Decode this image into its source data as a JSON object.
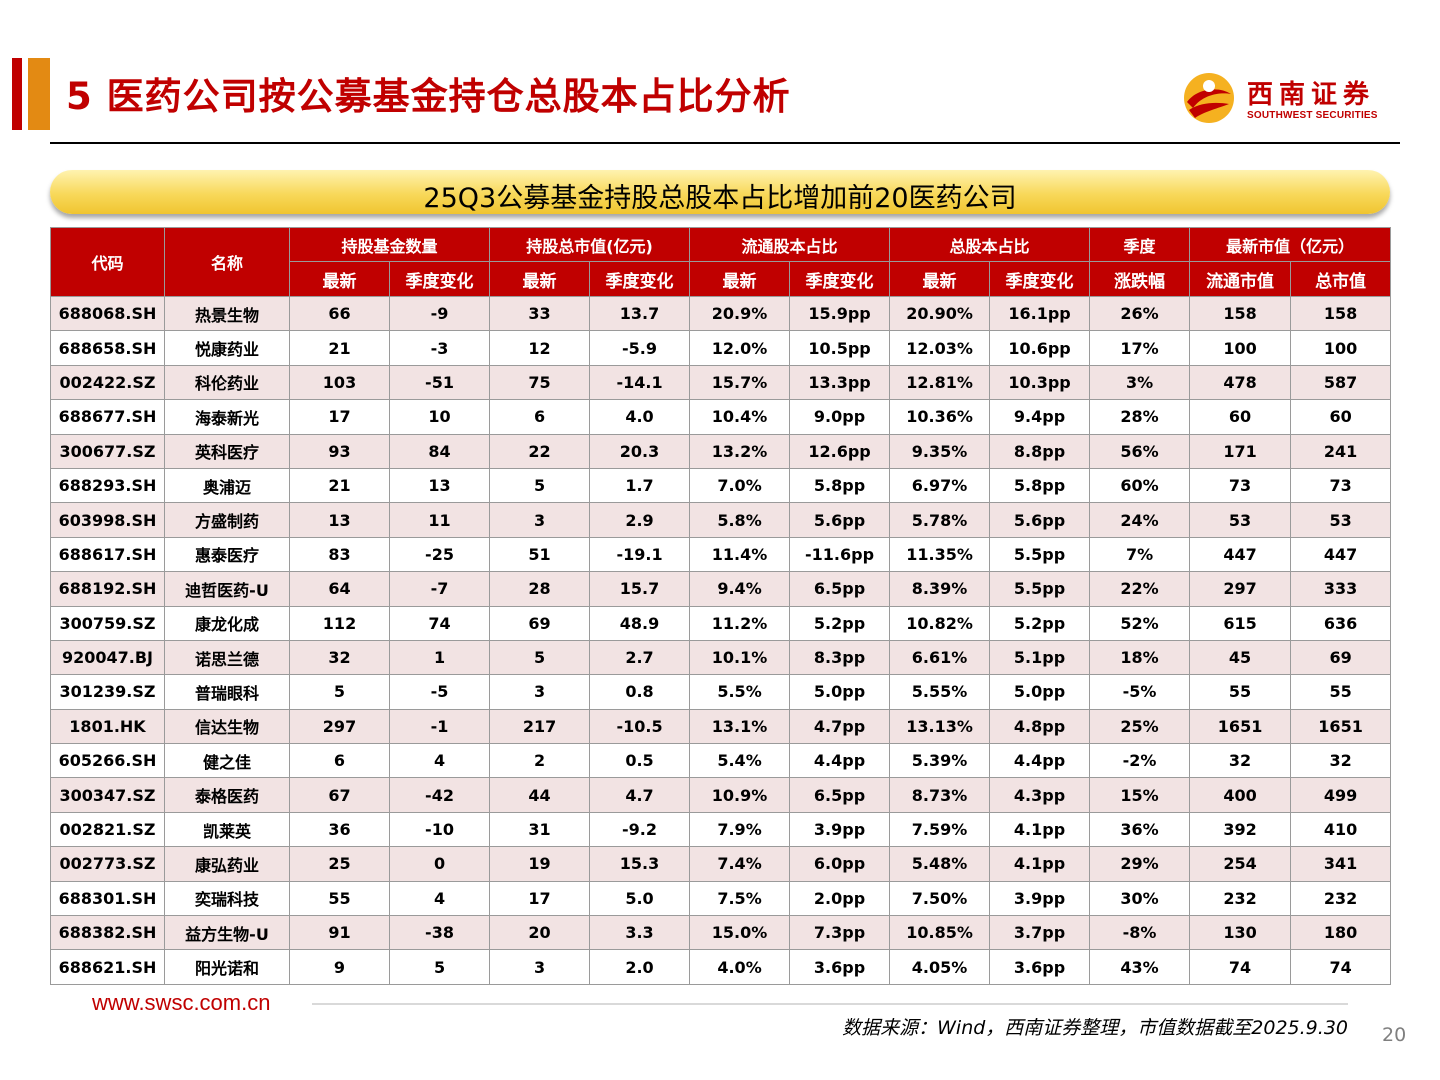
{
  "page": {
    "title": "5 医药公司按公募基金持仓总股本占比分析",
    "logo_cn": "西南证券",
    "logo_en": "SOUTHWEST SECURITIES",
    "banner": "25Q3公募基金持股总股本占比增加前20医药公司",
    "footer_url": "www.swsc.com.cn",
    "source": "数据来源：Wind，西南证券整理，市值数据截至2025.9.30",
    "page_number": "20"
  },
  "colors": {
    "brand_red": "#c00000",
    "accent_orange": "#e38a13",
    "banner_yellow": "#f8d85a",
    "row_tint": "#f2e3e3"
  },
  "table": {
    "group_headers": [
      "代码",
      "名称",
      "持股基金数量",
      "持股总市值(亿元)",
      "流通股本占比",
      "总股本占比",
      "季度",
      "最新市值（亿元）"
    ],
    "sub_headers": [
      "最新",
      "季度变化",
      "最新",
      "季度变化",
      "最新",
      "季度变化",
      "最新",
      "季度变化",
      "涨跌幅",
      "流通市值",
      "总市值"
    ],
    "rows": [
      [
        "688068.SH",
        "热景生物",
        "66",
        "-9",
        "33",
        "13.7",
        "20.9%",
        "15.9pp",
        "20.90%",
        "16.1pp",
        "26%",
        "158",
        "158"
      ],
      [
        "688658.SH",
        "悦康药业",
        "21",
        "-3",
        "12",
        "-5.9",
        "12.0%",
        "10.5pp",
        "12.03%",
        "10.6pp",
        "17%",
        "100",
        "100"
      ],
      [
        "002422.SZ",
        "科伦药业",
        "103",
        "-51",
        "75",
        "-14.1",
        "15.7%",
        "13.3pp",
        "12.81%",
        "10.3pp",
        "3%",
        "478",
        "587"
      ],
      [
        "688677.SH",
        "海泰新光",
        "17",
        "10",
        "6",
        "4.0",
        "10.4%",
        "9.0pp",
        "10.36%",
        "9.4pp",
        "28%",
        "60",
        "60"
      ],
      [
        "300677.SZ",
        "英科医疗",
        "93",
        "84",
        "22",
        "20.3",
        "13.2%",
        "12.6pp",
        "9.35%",
        "8.8pp",
        "56%",
        "171",
        "241"
      ],
      [
        "688293.SH",
        "奥浦迈",
        "21",
        "13",
        "5",
        "1.7",
        "7.0%",
        "5.8pp",
        "6.97%",
        "5.8pp",
        "60%",
        "73",
        "73"
      ],
      [
        "603998.SH",
        "方盛制药",
        "13",
        "11",
        "3",
        "2.9",
        "5.8%",
        "5.6pp",
        "5.78%",
        "5.6pp",
        "24%",
        "53",
        "53"
      ],
      [
        "688617.SH",
        "惠泰医疗",
        "83",
        "-25",
        "51",
        "-19.1",
        "11.4%",
        "-11.6pp",
        "11.35%",
        "5.5pp",
        "7%",
        "447",
        "447"
      ],
      [
        "688192.SH",
        "迪哲医药-U",
        "64",
        "-7",
        "28",
        "15.7",
        "9.4%",
        "6.5pp",
        "8.39%",
        "5.5pp",
        "22%",
        "297",
        "333"
      ],
      [
        "300759.SZ",
        "康龙化成",
        "112",
        "74",
        "69",
        "48.9",
        "11.2%",
        "5.2pp",
        "10.82%",
        "5.2pp",
        "52%",
        "615",
        "636"
      ],
      [
        "920047.BJ",
        "诺思兰德",
        "32",
        "1",
        "5",
        "2.7",
        "10.1%",
        "8.3pp",
        "6.61%",
        "5.1pp",
        "18%",
        "45",
        "69"
      ],
      [
        "301239.SZ",
        "普瑞眼科",
        "5",
        "-5",
        "3",
        "0.8",
        "5.5%",
        "5.0pp",
        "5.55%",
        "5.0pp",
        "-5%",
        "55",
        "55"
      ],
      [
        "1801.HK",
        "信达生物",
        "297",
        "-1",
        "217",
        "-10.5",
        "13.1%",
        "4.7pp",
        "13.13%",
        "4.8pp",
        "25%",
        "1651",
        "1651"
      ],
      [
        "605266.SH",
        "健之佳",
        "6",
        "4",
        "2",
        "0.5",
        "5.4%",
        "4.4pp",
        "5.39%",
        "4.4pp",
        "-2%",
        "32",
        "32"
      ],
      [
        "300347.SZ",
        "泰格医药",
        "67",
        "-42",
        "44",
        "4.7",
        "10.9%",
        "6.5pp",
        "8.73%",
        "4.3pp",
        "15%",
        "400",
        "499"
      ],
      [
        "002821.SZ",
        "凯莱英",
        "36",
        "-10",
        "31",
        "-9.2",
        "7.9%",
        "3.9pp",
        "7.59%",
        "4.1pp",
        "36%",
        "392",
        "410"
      ],
      [
        "002773.SZ",
        "康弘药业",
        "25",
        "0",
        "19",
        "15.3",
        "7.4%",
        "6.0pp",
        "5.48%",
        "4.1pp",
        "29%",
        "254",
        "341"
      ],
      [
        "688301.SH",
        "奕瑞科技",
        "55",
        "4",
        "17",
        "5.0",
        "7.5%",
        "2.0pp",
        "7.50%",
        "3.9pp",
        "30%",
        "232",
        "232"
      ],
      [
        "688382.SH",
        "益方生物-U",
        "91",
        "-38",
        "20",
        "3.3",
        "15.0%",
        "7.3pp",
        "10.85%",
        "3.7pp",
        "-8%",
        "130",
        "180"
      ],
      [
        "688621.SH",
        "阳光诺和",
        "9",
        "5",
        "3",
        "2.0",
        "4.0%",
        "3.6pp",
        "4.05%",
        "3.6pp",
        "43%",
        "74",
        "74"
      ]
    ]
  }
}
